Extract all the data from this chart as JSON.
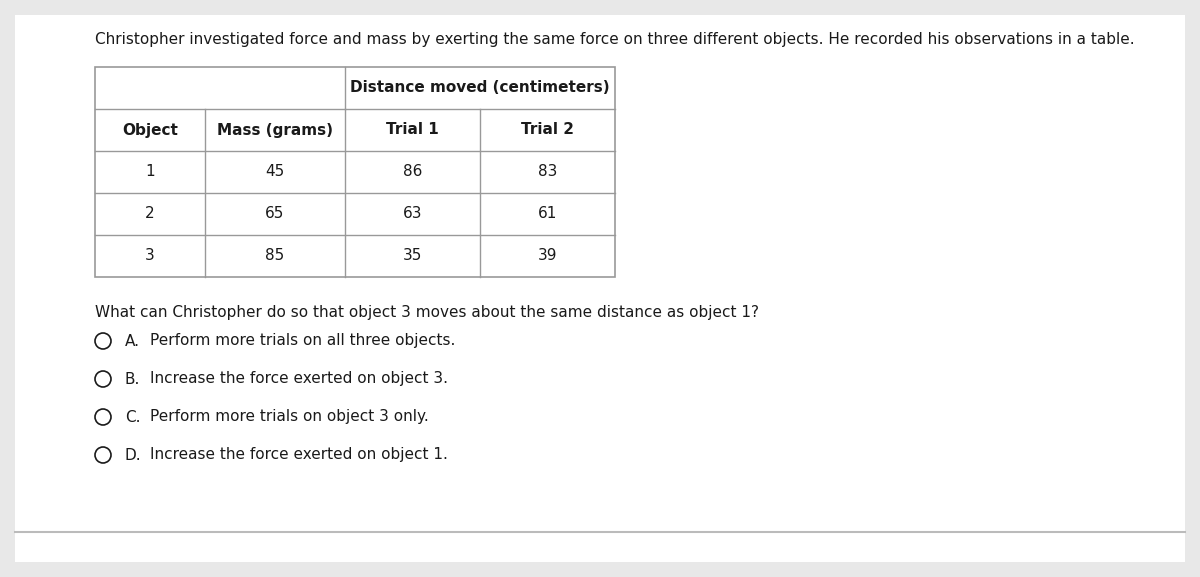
{
  "background_color": "#e8e8e8",
  "card_color": "#ffffff",
  "intro_text": "Christopher investigated force and mass by exerting the same force on three different objects. He recorded his observations in a table.",
  "table": {
    "col_headers_row2": [
      "Object",
      "Mass (grams)",
      "Trial 1",
      "Trial 2"
    ],
    "rows": [
      [
        "1",
        "45",
        "86",
        "83"
      ],
      [
        "2",
        "65",
        "63",
        "61"
      ],
      [
        "3",
        "85",
        "35",
        "39"
      ]
    ]
  },
  "distance_header": "Distance moved (centimeters)",
  "question_text": "What can Christopher do so that object 3 moves about the same distance as object 1?",
  "choices": [
    {
      "label": "A.",
      "text": "Perform more trials on all three objects."
    },
    {
      "label": "B.",
      "text": "Increase the force exerted on object 3."
    },
    {
      "label": "C.",
      "text": "Perform more trials on object 3 only."
    },
    {
      "label": "D.",
      "text": "Increase the force exerted on object 1."
    }
  ],
  "text_color": "#1a1a1a",
  "table_border_color": "#999999",
  "intro_font_size": 11,
  "header_font_size": 11,
  "body_font_size": 11,
  "question_font_size": 11,
  "choice_font_size": 11
}
